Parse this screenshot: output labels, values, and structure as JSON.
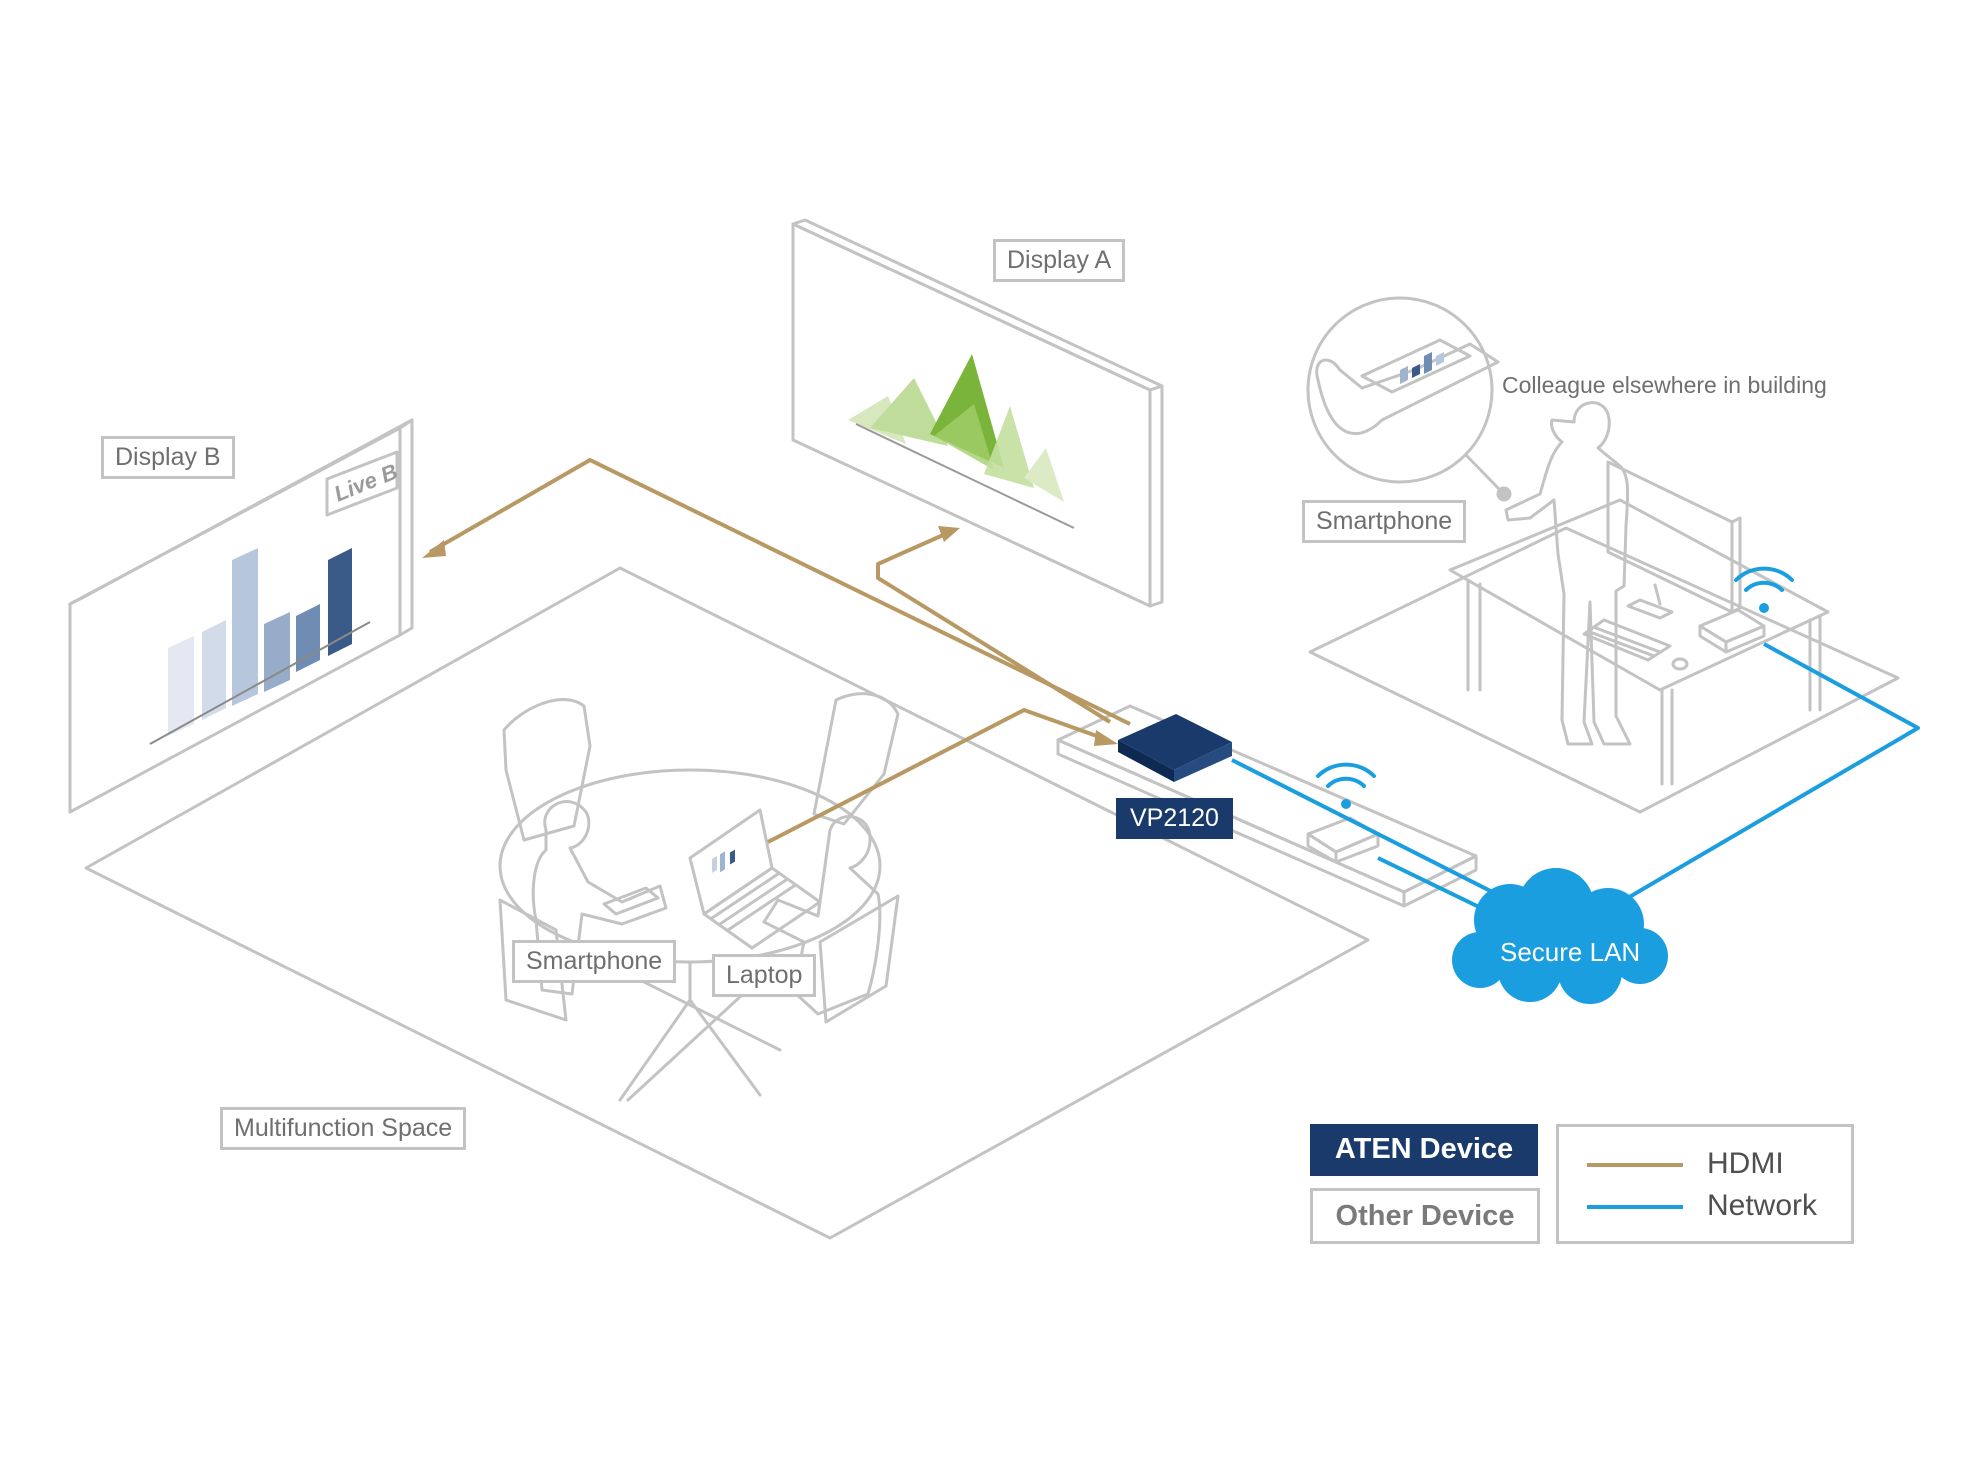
{
  "labels": {
    "display_a": "Display A",
    "display_b": "Display B",
    "live_b": "Live B",
    "colleague": "Colleague elsewhere in building",
    "smartphone_remote": "Smartphone",
    "smartphone_table": "Smartphone",
    "laptop": "Laptop",
    "vp2120": "VP2120",
    "secure_lan": "Secure LAN",
    "multifunction_space": "Multifunction Space"
  },
  "legend": {
    "aten_device": "ATEN Device",
    "other_device": "Other Device",
    "hdmi": "HDMI",
    "network": "Network"
  },
  "colors": {
    "hdmi": "#b89863",
    "network": "#1a9ee0",
    "aten": "#193a6b",
    "outline": "#c3c3c3",
    "text_gray": "#6f6f6f"
  }
}
